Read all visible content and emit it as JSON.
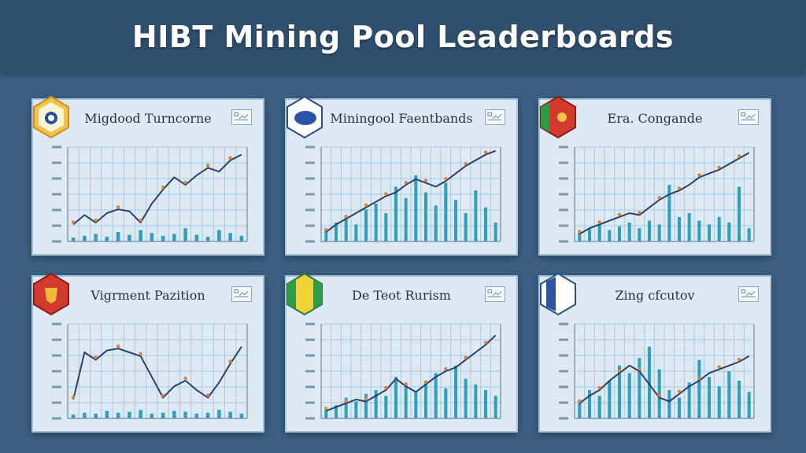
{
  "title": "HIBT Mining Pool Leaderboards",
  "colors": {
    "background": "#3a5f80",
    "title_bar": "#2f4f6e",
    "panel_bg": "#dde9f3",
    "line": "#2e3f6a",
    "bars": "#2f9fbf",
    "markers": "#d9853a"
  },
  "chart_data": [
    {
      "type": "line",
      "title": "Migdood Turncorne",
      "badge_icon": "gold-hexagon-drop-icon",
      "x": [
        1,
        2,
        3,
        4,
        5,
        6,
        7,
        8,
        9,
        10,
        11,
        12,
        13,
        14,
        15,
        16
      ],
      "line": [
        18,
        28,
        20,
        30,
        34,
        32,
        20,
        40,
        55,
        68,
        60,
        70,
        78,
        74,
        86,
        92
      ],
      "bars": [
        4,
        6,
        8,
        5,
        10,
        7,
        12,
        9,
        6,
        8,
        14,
        7,
        5,
        12,
        9,
        6
      ],
      "ylim": [
        0,
        100
      ]
    },
    {
      "type": "line",
      "title": "Miningool Faentbands",
      "badge_icon": "blue-blob-icon",
      "x": [
        1,
        2,
        3,
        4,
        5,
        6,
        7,
        8,
        9,
        10,
        11,
        12,
        13,
        14,
        15,
        16,
        17,
        18
      ],
      "line": [
        10,
        18,
        24,
        30,
        36,
        42,
        48,
        52,
        60,
        66,
        62,
        58,
        64,
        72,
        80,
        86,
        92,
        96
      ],
      "bars": [
        12,
        20,
        26,
        18,
        34,
        40,
        30,
        58,
        46,
        70,
        52,
        38,
        62,
        44,
        30,
        54,
        36,
        20
      ],
      "ylim": [
        0,
        100
      ]
    },
    {
      "type": "line",
      "title": "Era. Congande",
      "badge_icon": "red-green-flag-icon",
      "x": [
        1,
        2,
        3,
        4,
        5,
        6,
        7,
        8,
        9,
        10,
        11,
        12,
        13,
        14,
        15,
        16,
        17,
        18
      ],
      "line": [
        8,
        14,
        18,
        22,
        26,
        30,
        28,
        36,
        44,
        50,
        54,
        60,
        68,
        72,
        76,
        82,
        88,
        94
      ],
      "bars": [
        10,
        14,
        18,
        12,
        16,
        20,
        14,
        22,
        18,
        60,
        26,
        30,
        22,
        18,
        26,
        20,
        58,
        14
      ],
      "ylim": [
        0,
        100
      ]
    },
    {
      "type": "line",
      "title": "Vigrment Pazition",
      "badge_icon": "red-gold-crest-icon",
      "x": [
        1,
        2,
        3,
        4,
        5,
        6,
        7,
        8,
        9,
        10,
        11,
        12,
        13,
        14,
        15,
        16
      ],
      "line": [
        20,
        70,
        62,
        72,
        74,
        70,
        66,
        44,
        22,
        34,
        40,
        30,
        22,
        38,
        58,
        76
      ],
      "bars": [
        4,
        6,
        5,
        8,
        6,
        7,
        9,
        5,
        6,
        8,
        7,
        5,
        6,
        9,
        7,
        5
      ],
      "ylim": [
        0,
        100
      ]
    },
    {
      "type": "line",
      "title": "De Teot Rurism",
      "badge_icon": "green-yellow-flag-icon",
      "x": [
        1,
        2,
        3,
        4,
        5,
        6,
        7,
        8,
        9,
        10,
        11,
        12,
        13,
        14,
        15,
        16,
        17,
        18
      ],
      "line": [
        8,
        12,
        16,
        20,
        18,
        24,
        30,
        42,
        34,
        28,
        36,
        44,
        50,
        54,
        62,
        70,
        78,
        88
      ],
      "bars": [
        10,
        14,
        22,
        18,
        26,
        30,
        24,
        44,
        36,
        28,
        40,
        48,
        32,
        56,
        42,
        36,
        30,
        24
      ],
      "ylim": [
        0,
        100
      ]
    },
    {
      "type": "line",
      "title": "Zing cfcutov",
      "badge_icon": "blue-white-flag-icon",
      "x": [
        1,
        2,
        3,
        4,
        5,
        6,
        7,
        8,
        9,
        10,
        11,
        12,
        13,
        14,
        15,
        16,
        17,
        18
      ],
      "line": [
        16,
        24,
        30,
        40,
        48,
        56,
        50,
        36,
        22,
        18,
        26,
        34,
        40,
        48,
        52,
        56,
        60,
        66
      ],
      "bars": [
        18,
        30,
        24,
        40,
        56,
        48,
        64,
        76,
        52,
        30,
        22,
        38,
        62,
        44,
        34,
        50,
        40,
        28
      ],
      "ylim": [
        0,
        100
      ]
    }
  ]
}
